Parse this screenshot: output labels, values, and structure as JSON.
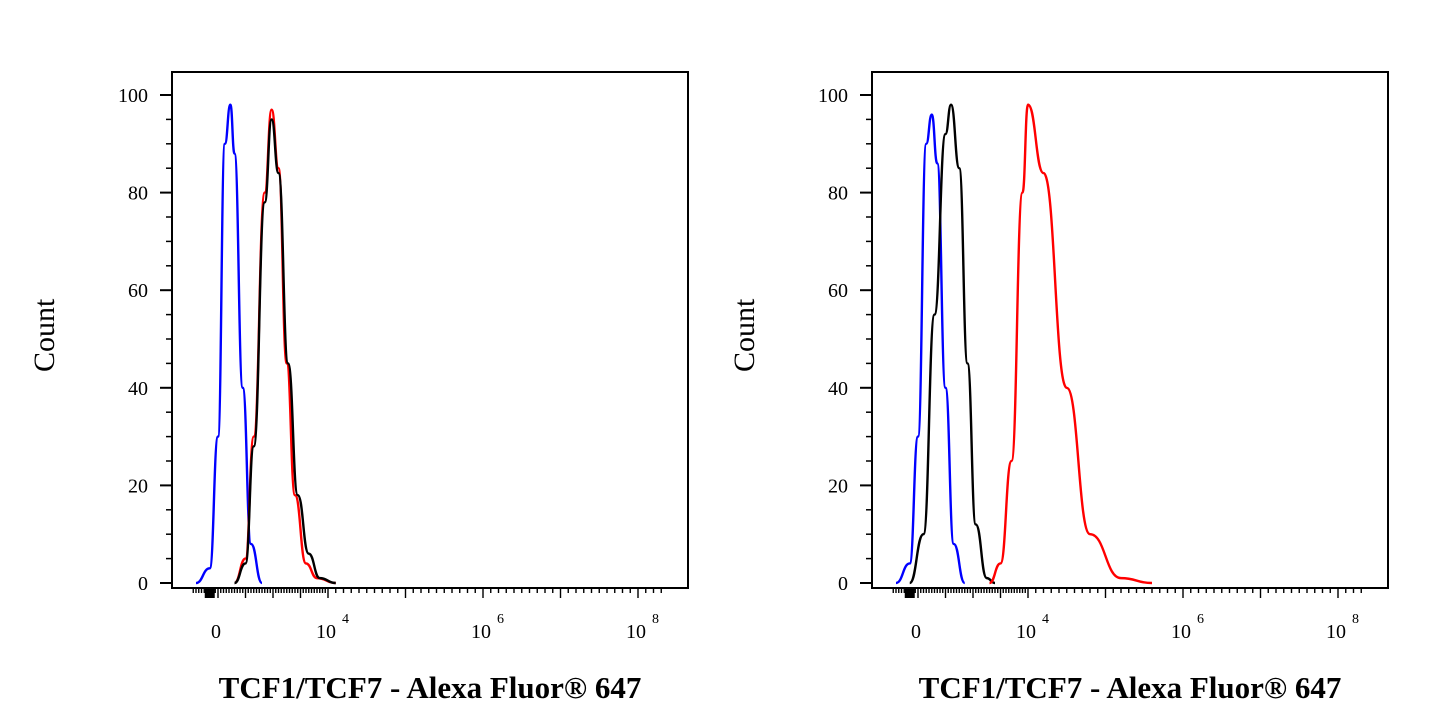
{
  "chart_data": [
    {
      "type": "line",
      "xlabel": "TCF1/TCF7 - Alexa Fluor® 647",
      "ylabel": "Count",
      "ylim": [
        0,
        100
      ],
      "yticks": [
        "0",
        "20",
        "40",
        "60",
        "80",
        "100"
      ],
      "xticks": [
        {
          "base": "0",
          "exp": ""
        },
        {
          "base": "10",
          "exp": "4"
        },
        {
          "base": "10",
          "exp": "6"
        },
        {
          "base": "10",
          "exp": "8"
        }
      ],
      "x_scale": "biexponential",
      "series": [
        {
          "color": "#0000ff",
          "points": [
            [
              -0.8,
              0
            ],
            [
              -0.3,
              3
            ],
            [
              0,
              30
            ],
            [
              0.25,
              90
            ],
            [
              0.45,
              98
            ],
            [
              0.6,
              88
            ],
            [
              0.9,
              40
            ],
            [
              1.2,
              8
            ],
            [
              1.6,
              0
            ]
          ]
        },
        {
          "color": "#ff0000",
          "points": [
            [
              0.6,
              0
            ],
            [
              1.0,
              5
            ],
            [
              1.3,
              30
            ],
            [
              1.7,
              80
            ],
            [
              1.95,
              97
            ],
            [
              2.2,
              85
            ],
            [
              2.5,
              45
            ],
            [
              2.8,
              18
            ],
            [
              3.2,
              4
            ],
            [
              3.6,
              1
            ],
            [
              4.1,
              0
            ]
          ]
        },
        {
          "color": "#000000",
          "points": [
            [
              0.6,
              0
            ],
            [
              1.0,
              4
            ],
            [
              1.3,
              28
            ],
            [
              1.7,
              78
            ],
            [
              1.95,
              95
            ],
            [
              2.2,
              84
            ],
            [
              2.55,
              45
            ],
            [
              2.9,
              18
            ],
            [
              3.3,
              6
            ],
            [
              3.7,
              1
            ],
            [
              4.1,
              0
            ]
          ]
        }
      ]
    },
    {
      "type": "line",
      "xlabel": "TCF1/TCF7 - Alexa Fluor® 647",
      "ylabel": "Count",
      "ylim": [
        0,
        100
      ],
      "yticks": [
        "0",
        "20",
        "40",
        "60",
        "80",
        "100"
      ],
      "xticks": [
        {
          "base": "0",
          "exp": ""
        },
        {
          "base": "10",
          "exp": "4"
        },
        {
          "base": "10",
          "exp": "6"
        },
        {
          "base": "10",
          "exp": "8"
        }
      ],
      "x_scale": "biexponential",
      "series": [
        {
          "color": "#0000ff",
          "points": [
            [
              -0.8,
              0
            ],
            [
              -0.3,
              4
            ],
            [
              0,
              30
            ],
            [
              0.3,
              90
            ],
            [
              0.5,
              96
            ],
            [
              0.7,
              86
            ],
            [
              1.0,
              40
            ],
            [
              1.3,
              8
            ],
            [
              1.7,
              0
            ]
          ]
        },
        {
          "color": "#000000",
          "points": [
            [
              -0.3,
              0
            ],
            [
              0.2,
              10
            ],
            [
              0.6,
              55
            ],
            [
              1.0,
              92
            ],
            [
              1.2,
              98
            ],
            [
              1.5,
              85
            ],
            [
              1.8,
              45
            ],
            [
              2.1,
              12
            ],
            [
              2.5,
              1
            ],
            [
              2.8,
              0
            ]
          ]
        },
        {
          "color": "#ff0000",
          "points": [
            [
              2.6,
              0
            ],
            [
              3.0,
              4
            ],
            [
              3.4,
              25
            ],
            [
              3.8,
              80
            ],
            [
              4.0,
              98
            ],
            [
              4.2,
              84
            ],
            [
              4.5,
              40
            ],
            [
              4.8,
              10
            ],
            [
              5.2,
              1
            ],
            [
              5.6,
              0
            ]
          ]
        }
      ]
    }
  ]
}
